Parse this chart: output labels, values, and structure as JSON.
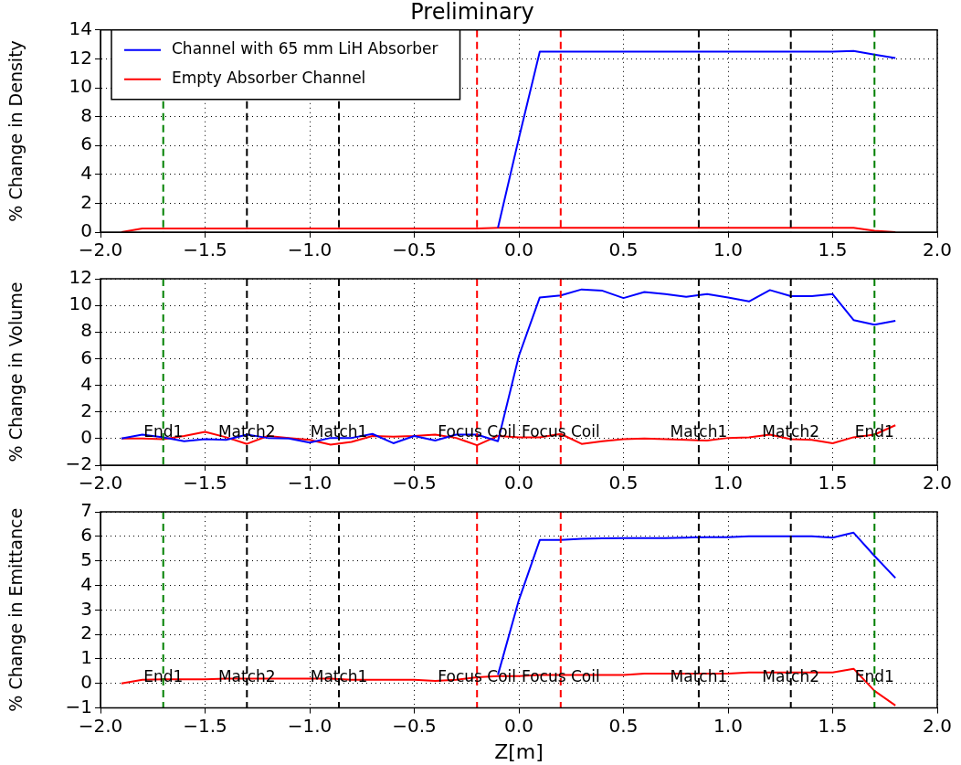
{
  "chart_data": [
    {
      "type": "line",
      "title": "Preliminary",
      "ylabel": "% Change in Density",
      "x": [
        -1.9,
        -1.8,
        -1.7,
        -1.6,
        -1.5,
        -1.4,
        -1.3,
        -1.2,
        -1.1,
        -1.0,
        -0.9,
        -0.8,
        -0.7,
        -0.6,
        -0.5,
        -0.4,
        -0.3,
        -0.2,
        -0.1,
        0.0,
        0.1,
        0.2,
        0.3,
        0.4,
        0.5,
        0.6,
        0.7,
        0.8,
        0.9,
        1.0,
        1.1,
        1.2,
        1.3,
        1.4,
        1.5,
        1.6,
        1.7,
        1.8
      ],
      "xticks": [
        {
          "value": -2,
          "label": "−2.0"
        },
        {
          "value": -1.5,
          "label": "−1.5"
        },
        {
          "value": -1,
          "label": "−1.0"
        },
        {
          "value": -0.5,
          "label": "−0.5"
        },
        {
          "value": 0,
          "label": "0.0"
        },
        {
          "value": 0.5,
          "label": "0.5"
        },
        {
          "value": 1,
          "label": "1.0"
        },
        {
          "value": 1.5,
          "label": "1.5"
        },
        {
          "value": 2,
          "label": "2.0"
        }
      ],
      "series": [
        {
          "name": "Channel with 65 mm LiH Absorber",
          "color": "#0000ff",
          "values": [
            null,
            null,
            null,
            null,
            null,
            null,
            null,
            null,
            null,
            null,
            null,
            null,
            null,
            null,
            null,
            null,
            null,
            null,
            0.3,
            6.5,
            12.5,
            12.5,
            12.5,
            12.5,
            12.5,
            12.5,
            12.5,
            12.5,
            12.5,
            12.5,
            12.5,
            12.5,
            12.5,
            12.5,
            12.5,
            12.55,
            12.3,
            12.05
          ]
        },
        {
          "name": "Empty Absorber Channel",
          "color": "#ff0000",
          "values": [
            0,
            0.25,
            0.25,
            0.25,
            0.25,
            0.25,
            0.25,
            0.25,
            0.25,
            0.25,
            0.25,
            0.25,
            0.25,
            0.25,
            0.25,
            0.25,
            0.25,
            0.25,
            0.3,
            0.3,
            0.3,
            0.3,
            0.3,
            0.3,
            0.3,
            0.3,
            0.3,
            0.3,
            0.3,
            0.3,
            0.3,
            0.3,
            0.3,
            0.3,
            0.3,
            0.3,
            0.1,
            0
          ]
        }
      ],
      "xlim": [
        -2,
        2
      ],
      "ylim": [
        0,
        14
      ],
      "yticks": [
        0,
        2,
        4,
        6,
        8,
        10,
        12,
        14
      ],
      "ref_lines": [
        {
          "axis": "x",
          "value": -1.7,
          "color": "#008000",
          "line_style": "dashed"
        },
        {
          "axis": "x",
          "value": -1.3,
          "color": "#000000",
          "line_style": "dashed"
        },
        {
          "axis": "x",
          "value": -0.86,
          "color": "#000000",
          "line_style": "dashed"
        },
        {
          "axis": "x",
          "value": -0.2,
          "color": "#ff0000",
          "line_style": "dashed"
        },
        {
          "axis": "x",
          "value": 0.2,
          "color": "#ff0000",
          "line_style": "dashed"
        },
        {
          "axis": "x",
          "value": 0.86,
          "color": "#000000",
          "line_style": "dashed"
        },
        {
          "axis": "x",
          "value": 1.3,
          "color": "#000000",
          "line_style": "dashed"
        },
        {
          "axis": "x",
          "value": 1.7,
          "color": "#008000",
          "line_style": "dashed"
        }
      ],
      "grid": true,
      "legend": "top left",
      "line_style": "solid",
      "marker": "none"
    },
    {
      "type": "line",
      "ylabel": "% Change in Volume",
      "x": [
        -1.9,
        -1.8,
        -1.7,
        -1.6,
        -1.5,
        -1.4,
        -1.3,
        -1.2,
        -1.1,
        -1.0,
        -0.9,
        -0.8,
        -0.7,
        -0.6,
        -0.5,
        -0.4,
        -0.3,
        -0.2,
        -0.1,
        0.0,
        0.1,
        0.2,
        0.3,
        0.4,
        0.5,
        0.6,
        0.7,
        0.8,
        0.9,
        1.0,
        1.1,
        1.2,
        1.3,
        1.4,
        1.5,
        1.6,
        1.7,
        1.8
      ],
      "series": [
        {
          "color": "#0000ff",
          "values": [
            0,
            0.3,
            0.1,
            -0.2,
            -0.05,
            -0.1,
            0.3,
            0.05,
            0,
            -0.3,
            0.05,
            0.05,
            0.35,
            -0.35,
            0.2,
            -0.15,
            0.3,
            0.3,
            -0.2,
            6.2,
            10.6,
            10.75,
            11.2,
            11.1,
            10.55,
            11.0,
            10.85,
            10.65,
            10.85,
            10.6,
            10.3,
            11.15,
            10.7,
            10.7,
            10.85,
            8.9,
            8.55,
            8.85
          ]
        },
        {
          "color": "#ff0000",
          "values": [
            0,
            0,
            -0.05,
            0.2,
            0.5,
            0.1,
            -0.4,
            0.2,
            0.05,
            -0.1,
            -0.45,
            -0.25,
            0.2,
            0.15,
            0.2,
            0.3,
            0.05,
            -0.5,
            0.2,
            0.1,
            0.1,
            0.35,
            -0.4,
            -0.2,
            -0.05,
            0,
            -0.05,
            -0.1,
            -0.15,
            0.05,
            0.1,
            0.3,
            -0.05,
            -0.1,
            -0.35,
            0.1,
            0.3,
            1.0
          ]
        }
      ],
      "xlim": [
        -2,
        2
      ],
      "xticks": [
        {
          "value": -2,
          "label": "−2.0"
        },
        {
          "value": -1.5,
          "label": "−1.5"
        },
        {
          "value": -1,
          "label": "−1.0"
        },
        {
          "value": -0.5,
          "label": "−0.5"
        },
        {
          "value": 0,
          "label": "0.0"
        },
        {
          "value": 0.5,
          "label": "0.5"
        },
        {
          "value": 1,
          "label": "1.0"
        },
        {
          "value": 1.5,
          "label": "1.5"
        },
        {
          "value": 2,
          "label": "2.0"
        }
      ],
      "ylim": [
        -2,
        12
      ],
      "yticks": [
        -2,
        0,
        2,
        4,
        6,
        8,
        10,
        12
      ],
      "ref_lines": [
        {
          "axis": "x",
          "value": -1.7,
          "label": "End1",
          "color": "#008000",
          "line_style": "dashed"
        },
        {
          "axis": "x",
          "value": -1.3,
          "label": "Match2",
          "color": "#000000",
          "line_style": "dashed"
        },
        {
          "axis": "x",
          "value": -0.86,
          "label": "Match1",
          "color": "#000000",
          "line_style": "dashed"
        },
        {
          "axis": "x",
          "value": -0.2,
          "label": "Focus Coil",
          "color": "#ff0000",
          "line_style": "dashed"
        },
        {
          "axis": "x",
          "value": 0.2,
          "label": "Focus Coil",
          "color": "#ff0000",
          "line_style": "dashed"
        },
        {
          "axis": "x",
          "value": 0.86,
          "label": "Match1",
          "color": "#000000",
          "line_style": "dashed"
        },
        {
          "axis": "x",
          "value": 1.3,
          "label": "Match2",
          "color": "#000000",
          "line_style": "dashed"
        },
        {
          "axis": "x",
          "value": 1.7,
          "label": "End1",
          "color": "#008000",
          "line_style": "dashed"
        }
      ],
      "grid": true,
      "line_style": "solid",
      "marker": "none"
    },
    {
      "type": "line",
      "xlabel": "Z[m]",
      "ylabel": "% Change in Emittance",
      "x": [
        -1.9,
        -1.8,
        -1.7,
        -1.6,
        -1.5,
        -1.4,
        -1.3,
        -1.2,
        -1.1,
        -1.0,
        -0.9,
        -0.8,
        -0.7,
        -0.6,
        -0.5,
        -0.4,
        -0.3,
        -0.2,
        -0.1,
        0.0,
        0.1,
        0.2,
        0.3,
        0.4,
        0.5,
        0.6,
        0.7,
        0.8,
        0.9,
        1.0,
        1.1,
        1.2,
        1.3,
        1.4,
        1.5,
        1.6,
        1.7,
        1.8
      ],
      "series": [
        {
          "color": "#0000ff",
          "values": [
            null,
            null,
            null,
            null,
            null,
            null,
            null,
            null,
            null,
            null,
            null,
            null,
            null,
            null,
            null,
            null,
            null,
            null,
            0.35,
            3.4,
            5.85,
            5.85,
            5.9,
            5.92,
            5.93,
            5.93,
            5.93,
            5.95,
            5.97,
            5.97,
            6.0,
            6.0,
            6.0,
            6.0,
            5.95,
            6.15,
            5.2,
            4.3
          ]
        },
        {
          "color": "#ff0000",
          "values": [
            0,
            0.15,
            0.17,
            0.17,
            0.17,
            0.2,
            0.2,
            0.2,
            0.2,
            0.2,
            0.2,
            0.15,
            0.15,
            0.15,
            0.15,
            0.1,
            0.15,
            0.25,
            0.3,
            0.3,
            0.35,
            0.35,
            0.35,
            0.35,
            0.35,
            0.4,
            0.4,
            0.4,
            0.4,
            0.4,
            0.45,
            0.45,
            0.45,
            0.45,
            0.45,
            0.6,
            -0.3,
            -0.9
          ]
        }
      ],
      "xlim": [
        -2,
        2
      ],
      "xticks": [
        {
          "value": -2,
          "label": "−2.0"
        },
        {
          "value": -1.5,
          "label": "−1.5"
        },
        {
          "value": -1,
          "label": "−1.0"
        },
        {
          "value": -0.5,
          "label": "−0.5"
        },
        {
          "value": 0,
          "label": "0.0"
        },
        {
          "value": 0.5,
          "label": "0.5"
        },
        {
          "value": 1,
          "label": "1.0"
        },
        {
          "value": 1.5,
          "label": "1.5"
        },
        {
          "value": 2,
          "label": "2.0"
        }
      ],
      "ylim": [
        -1,
        7
      ],
      "yticks": [
        -1,
        0,
        1,
        2,
        3,
        4,
        5,
        6,
        7
      ],
      "ref_lines": [
        {
          "axis": "x",
          "value": -1.7,
          "label": "End1",
          "color": "#008000",
          "line_style": "dashed"
        },
        {
          "axis": "x",
          "value": -1.3,
          "label": "Match2",
          "color": "#000000",
          "line_style": "dashed"
        },
        {
          "axis": "x",
          "value": -0.86,
          "label": "Match1",
          "color": "#000000",
          "line_style": "dashed"
        },
        {
          "axis": "x",
          "value": -0.2,
          "label": "Focus Coil",
          "color": "#ff0000",
          "line_style": "dashed"
        },
        {
          "axis": "x",
          "value": 0.2,
          "label": "Focus Coil",
          "color": "#ff0000",
          "line_style": "dashed"
        },
        {
          "axis": "x",
          "value": 0.86,
          "label": "Match1",
          "color": "#000000",
          "line_style": "dashed"
        },
        {
          "axis": "x",
          "value": 1.3,
          "label": "Match2",
          "color": "#000000",
          "line_style": "dashed"
        },
        {
          "axis": "x",
          "value": 1.7,
          "label": "End1",
          "color": "#008000",
          "line_style": "dashed"
        }
      ],
      "grid": true,
      "line_style": "solid",
      "marker": "none"
    }
  ]
}
